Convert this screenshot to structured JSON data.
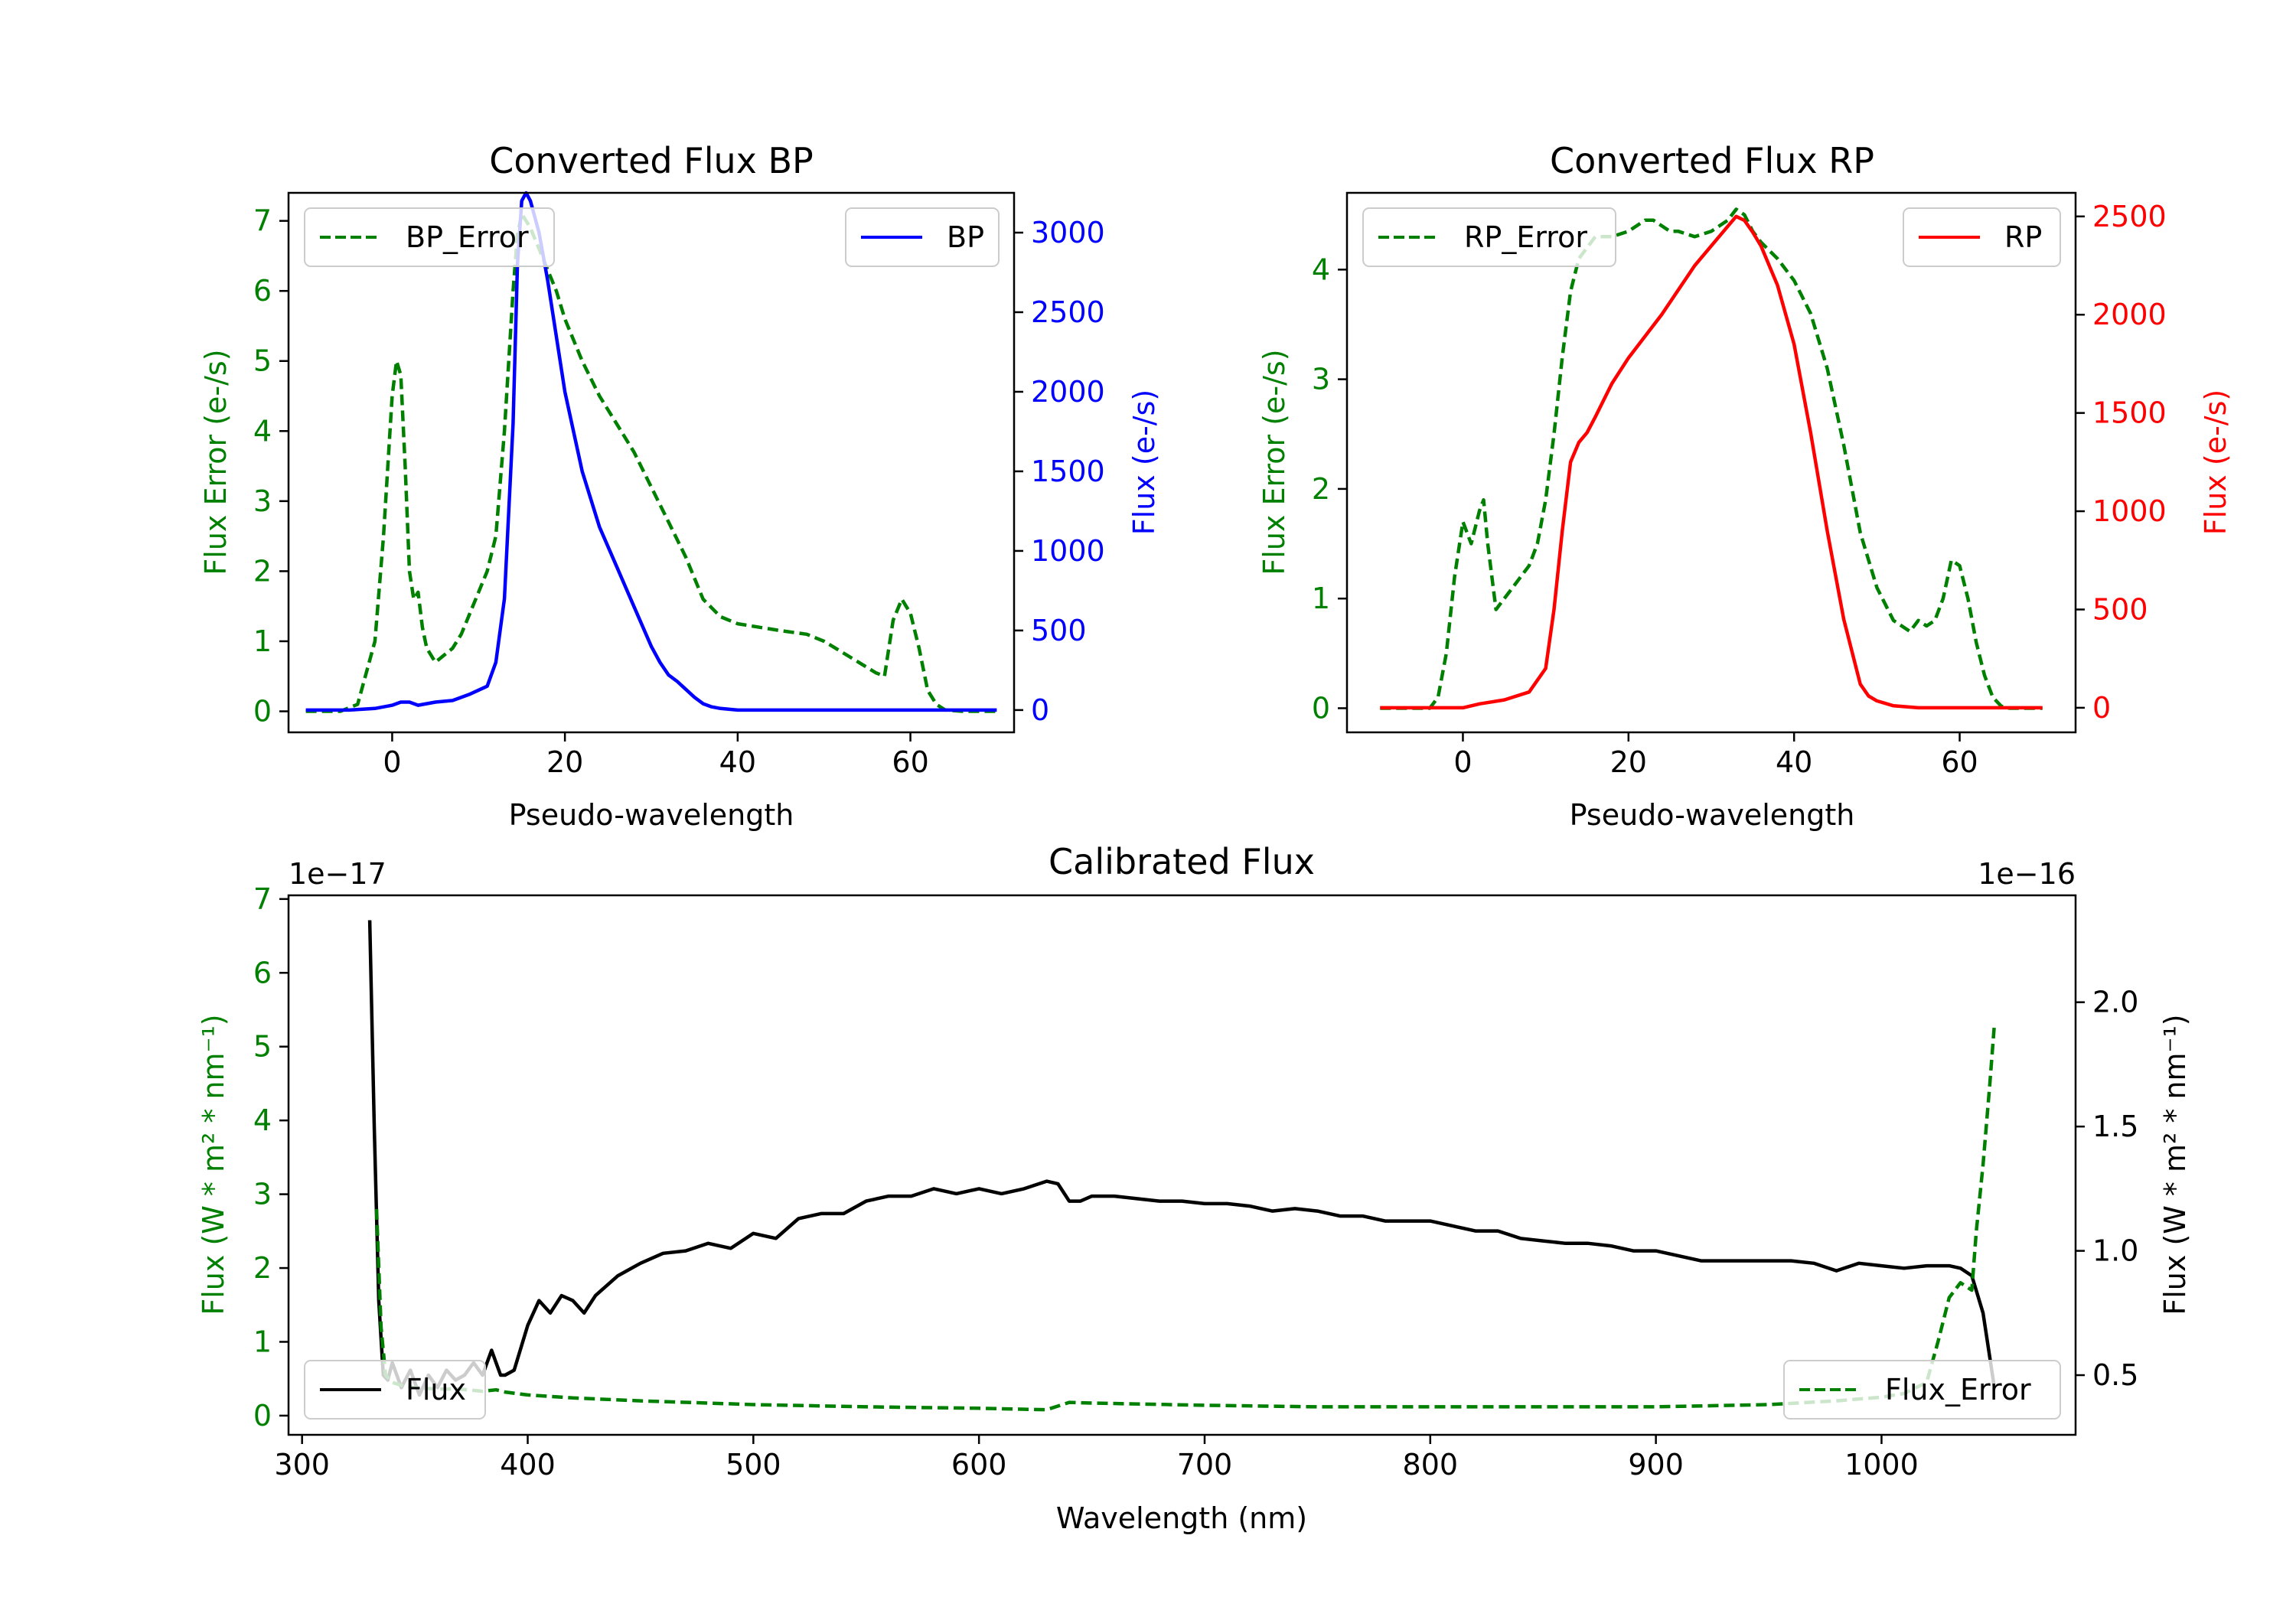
{
  "colors": {
    "green": "#008000",
    "blue": "#0000ff",
    "red": "#ff0000",
    "black": "#000000"
  },
  "chart_data": [
    {
      "type": "line",
      "title": "Converted Flux BP",
      "xlabel": "Pseudo-wavelength",
      "ylabel_left": "Flux Error (e-/s)",
      "ylabel_right": "Flux (e-/s)",
      "xlim": [
        -12,
        72
      ],
      "ylim_left": [
        -0.3,
        7.4
      ],
      "ylim_right": [
        -140,
        3250
      ],
      "xticks": [
        0,
        20,
        40,
        60
      ],
      "yticks_left": [
        0,
        1,
        2,
        3,
        4,
        5,
        6,
        7
      ],
      "yticks_right": [
        0,
        500,
        1000,
        1500,
        2000,
        2500,
        3000
      ],
      "series": [
        {
          "name": "BP_Error",
          "axis": "left",
          "color": "#008000",
          "dashed": true,
          "x": [
            -10,
            -6,
            -4,
            -2,
            -1,
            0,
            0.5,
            1,
            1.5,
            2,
            2.5,
            3,
            3.5,
            4,
            5,
            6,
            7,
            8,
            9,
            10,
            11,
            12,
            13,
            14,
            14.5,
            15,
            15.5,
            16,
            17,
            18,
            19,
            20,
            22,
            24,
            26,
            28,
            30,
            32,
            34,
            36,
            38,
            40,
            45,
            48,
            50,
            52,
            54,
            56,
            57,
            58,
            59,
            60,
            61,
            62,
            63,
            64,
            66,
            68,
            70
          ],
          "y": [
            0,
            0,
            0.1,
            1,
            2.5,
            4.5,
            5,
            4.8,
            3.5,
            2,
            1.6,
            1.7,
            1.2,
            0.9,
            0.7,
            0.8,
            0.9,
            1.1,
            1.4,
            1.7,
            2,
            2.5,
            4,
            6,
            6.8,
            7.1,
            7,
            6.9,
            6.6,
            6.3,
            6,
            5.6,
            5,
            4.5,
            4.1,
            3.7,
            3.2,
            2.7,
            2.2,
            1.6,
            1.35,
            1.25,
            1.15,
            1.1,
            1,
            0.85,
            0.7,
            0.55,
            0.5,
            1.3,
            1.6,
            1.4,
            0.9,
            0.3,
            0.1,
            0.02,
            0,
            0,
            0
          ]
        },
        {
          "name": "BP",
          "axis": "right",
          "color": "#0000ff",
          "dashed": false,
          "x": [
            -10,
            -5,
            -2,
            0,
            1,
            2,
            3,
            5,
            7,
            9,
            11,
            12,
            13,
            14,
            14.5,
            15,
            15.5,
            16,
            17,
            18,
            20,
            22,
            24,
            26,
            28,
            30,
            31,
            32,
            33,
            34,
            35,
            36,
            37,
            38,
            40,
            42,
            45,
            50,
            55,
            60,
            65,
            70
          ],
          "y": [
            0,
            0,
            10,
            30,
            50,
            50,
            30,
            50,
            60,
            100,
            150,
            300,
            700,
            1800,
            2800,
            3200,
            3250,
            3200,
            3000,
            2700,
            2000,
            1500,
            1150,
            900,
            650,
            400,
            300,
            220,
            180,
            130,
            80,
            40,
            20,
            10,
            0,
            0,
            0,
            0,
            0,
            0,
            0,
            0
          ]
        }
      ],
      "legend": [
        {
          "label": "BP_Error",
          "position": "upper-left"
        },
        {
          "label": "BP",
          "position": "upper-right"
        }
      ]
    },
    {
      "type": "line",
      "title": "Converted Flux RP",
      "xlabel": "Pseudo-wavelength",
      "ylabel_left": "Flux Error (e-/s)",
      "ylabel_right": "Flux (e-/s)",
      "xlim": [
        -14,
        74
      ],
      "ylim_left": [
        -0.22,
        4.7
      ],
      "ylim_right": [
        -125,
        2620
      ],
      "xticks": [
        0,
        20,
        40,
        60
      ],
      "yticks_left": [
        0,
        1,
        2,
        3,
        4
      ],
      "yticks_right": [
        0,
        500,
        1000,
        1500,
        2000,
        2500
      ],
      "series": [
        {
          "name": "RP_Error",
          "axis": "left",
          "color": "#008000",
          "dashed": true,
          "x": [
            -10,
            -5,
            -4,
            -3,
            -2,
            -1,
            0,
            1,
            2,
            2.5,
            3,
            3.5,
            4,
            5,
            6,
            7,
            8,
            9,
            10,
            11,
            12,
            13,
            14,
            15,
            16,
            18,
            20,
            22,
            23,
            24,
            25,
            26,
            28,
            30,
            32,
            33,
            34,
            35,
            36,
            38,
            40,
            42,
            44,
            46,
            48,
            50,
            52,
            54,
            55,
            56,
            57,
            58,
            59,
            60,
            61,
            62,
            63,
            64,
            65,
            66,
            68,
            70
          ],
          "y": [
            0,
            0,
            0,
            0.1,
            0.5,
            1.2,
            1.7,
            1.5,
            1.8,
            1.9,
            1.5,
            1.2,
            0.9,
            1,
            1.1,
            1.2,
            1.3,
            1.5,
            1.9,
            2.5,
            3.2,
            3.8,
            4.1,
            4.2,
            4.3,
            4.3,
            4.35,
            4.45,
            4.45,
            4.4,
            4.35,
            4.35,
            4.3,
            4.35,
            4.45,
            4.55,
            4.5,
            4.35,
            4.25,
            4.1,
            3.9,
            3.6,
            3.1,
            2.4,
            1.6,
            1.1,
            0.8,
            0.7,
            0.8,
            0.75,
            0.8,
            1,
            1.35,
            1.3,
            1,
            0.6,
            0.3,
            0.1,
            0.02,
            0,
            0,
            0
          ]
        },
        {
          "name": "RP",
          "axis": "right",
          "color": "#ff0000",
          "dashed": false,
          "x": [
            -10,
            -5,
            0,
            2,
            5,
            8,
            10,
            11,
            12,
            13,
            14,
            15,
            16,
            18,
            20,
            24,
            28,
            30,
            32,
            33,
            34,
            35,
            36,
            38,
            40,
            42,
            44,
            46,
            48,
            49,
            50,
            52,
            55,
            60,
            65,
            70
          ],
          "y": [
            0,
            0,
            0,
            20,
            40,
            80,
            200,
            500,
            900,
            1250,
            1350,
            1400,
            1480,
            1650,
            1780,
            2000,
            2250,
            2350,
            2450,
            2500,
            2480,
            2420,
            2350,
            2150,
            1850,
            1400,
            900,
            450,
            120,
            60,
            35,
            10,
            0,
            0,
            0,
            0
          ]
        }
      ],
      "legend": [
        {
          "label": "RP_Error",
          "position": "upper-left"
        },
        {
          "label": "RP",
          "position": "upper-right"
        }
      ]
    },
    {
      "type": "line",
      "title": "Calibrated Flux",
      "xlabel": "Wavelength (nm)",
      "ylabel_left": "Flux (W * m² * nm⁻¹)",
      "ylabel_right": "Flux (W * m² * nm⁻¹)",
      "offset_left": "1e−17",
      "offset_right": "1e−16",
      "xlim": [
        294,
        1086
      ],
      "ylim_left": [
        -0.26,
        7.05
      ],
      "ylim_right": [
        0.26,
        2.43
      ],
      "xticks": [
        300,
        400,
        500,
        600,
        700,
        800,
        900,
        1000
      ],
      "yticks_left": [
        0,
        1,
        2,
        3,
        4,
        5,
        6,
        7
      ],
      "yticks_right": [
        0.5,
        1.0,
        1.5,
        2.0
      ],
      "series": [
        {
          "name": "Flux",
          "axis": "right",
          "color": "#000000",
          "dashed": false,
          "x": [
            330,
            332,
            334,
            336,
            338,
            340,
            344,
            348,
            352,
            356,
            360,
            364,
            368,
            372,
            376,
            380,
            384,
            386,
            388,
            390,
            394,
            400,
            405,
            410,
            415,
            420,
            425,
            430,
            440,
            450,
            460,
            470,
            480,
            490,
            500,
            510,
            520,
            530,
            540,
            550,
            560,
            570,
            580,
            590,
            600,
            610,
            620,
            630,
            635,
            640,
            645,
            650,
            660,
            670,
            680,
            690,
            700,
            710,
            720,
            730,
            740,
            750,
            760,
            770,
            780,
            790,
            800,
            810,
            820,
            830,
            840,
            850,
            860,
            870,
            880,
            890,
            900,
            910,
            920,
            930,
            940,
            950,
            960,
            970,
            980,
            990,
            1000,
            1010,
            1020,
            1030,
            1035,
            1040,
            1045,
            1050
          ],
          "y": [
            2.33,
            1.5,
            0.8,
            0.5,
            0.48,
            0.55,
            0.45,
            0.52,
            0.42,
            0.5,
            0.45,
            0.52,
            0.48,
            0.5,
            0.55,
            0.5,
            0.6,
            0.55,
            0.5,
            0.5,
            0.52,
            0.7,
            0.8,
            0.75,
            0.82,
            0.8,
            0.75,
            0.82,
            0.9,
            0.95,
            0.99,
            1.0,
            1.03,
            1.01,
            1.07,
            1.05,
            1.13,
            1.15,
            1.15,
            1.2,
            1.22,
            1.22,
            1.25,
            1.23,
            1.25,
            1.23,
            1.25,
            1.28,
            1.27,
            1.2,
            1.2,
            1.22,
            1.22,
            1.21,
            1.2,
            1.2,
            1.19,
            1.19,
            1.18,
            1.16,
            1.17,
            1.16,
            1.14,
            1.14,
            1.12,
            1.12,
            1.12,
            1.1,
            1.08,
            1.08,
            1.05,
            1.04,
            1.03,
            1.03,
            1.02,
            1.0,
            1.0,
            0.98,
            0.96,
            0.96,
            0.96,
            0.96,
            0.96,
            0.95,
            0.92,
            0.95,
            0.94,
            0.93,
            0.94,
            0.94,
            0.93,
            0.9,
            0.75,
            0.45
          ]
        },
        {
          "name": "Flux_Error",
          "axis": "left",
          "color": "#008000",
          "dashed": true,
          "x": [
            333,
            335,
            337,
            340,
            345,
            350,
            360,
            370,
            380,
            386,
            390,
            400,
            420,
            450,
            500,
            550,
            600,
            630,
            640,
            650,
            700,
            750,
            800,
            850,
            900,
            950,
            980,
            1000,
            1010,
            1020,
            1025,
            1030,
            1035,
            1040,
            1042,
            1045,
            1048,
            1050
          ],
          "y": [
            2.8,
            1.2,
            0.55,
            0.45,
            0.4,
            0.38,
            0.36,
            0.36,
            0.33,
            0.35,
            0.32,
            0.28,
            0.24,
            0.2,
            0.15,
            0.12,
            0.1,
            0.08,
            0.18,
            0.17,
            0.14,
            0.12,
            0.12,
            0.12,
            0.12,
            0.15,
            0.2,
            0.25,
            0.3,
            0.45,
            1.0,
            1.6,
            1.8,
            1.7,
            2.5,
            3.4,
            4.5,
            5.3
          ]
        }
      ],
      "legend": [
        {
          "label": "Flux",
          "position": "lower-left"
        },
        {
          "label": "Flux_Error",
          "position": "lower-right"
        }
      ]
    }
  ]
}
